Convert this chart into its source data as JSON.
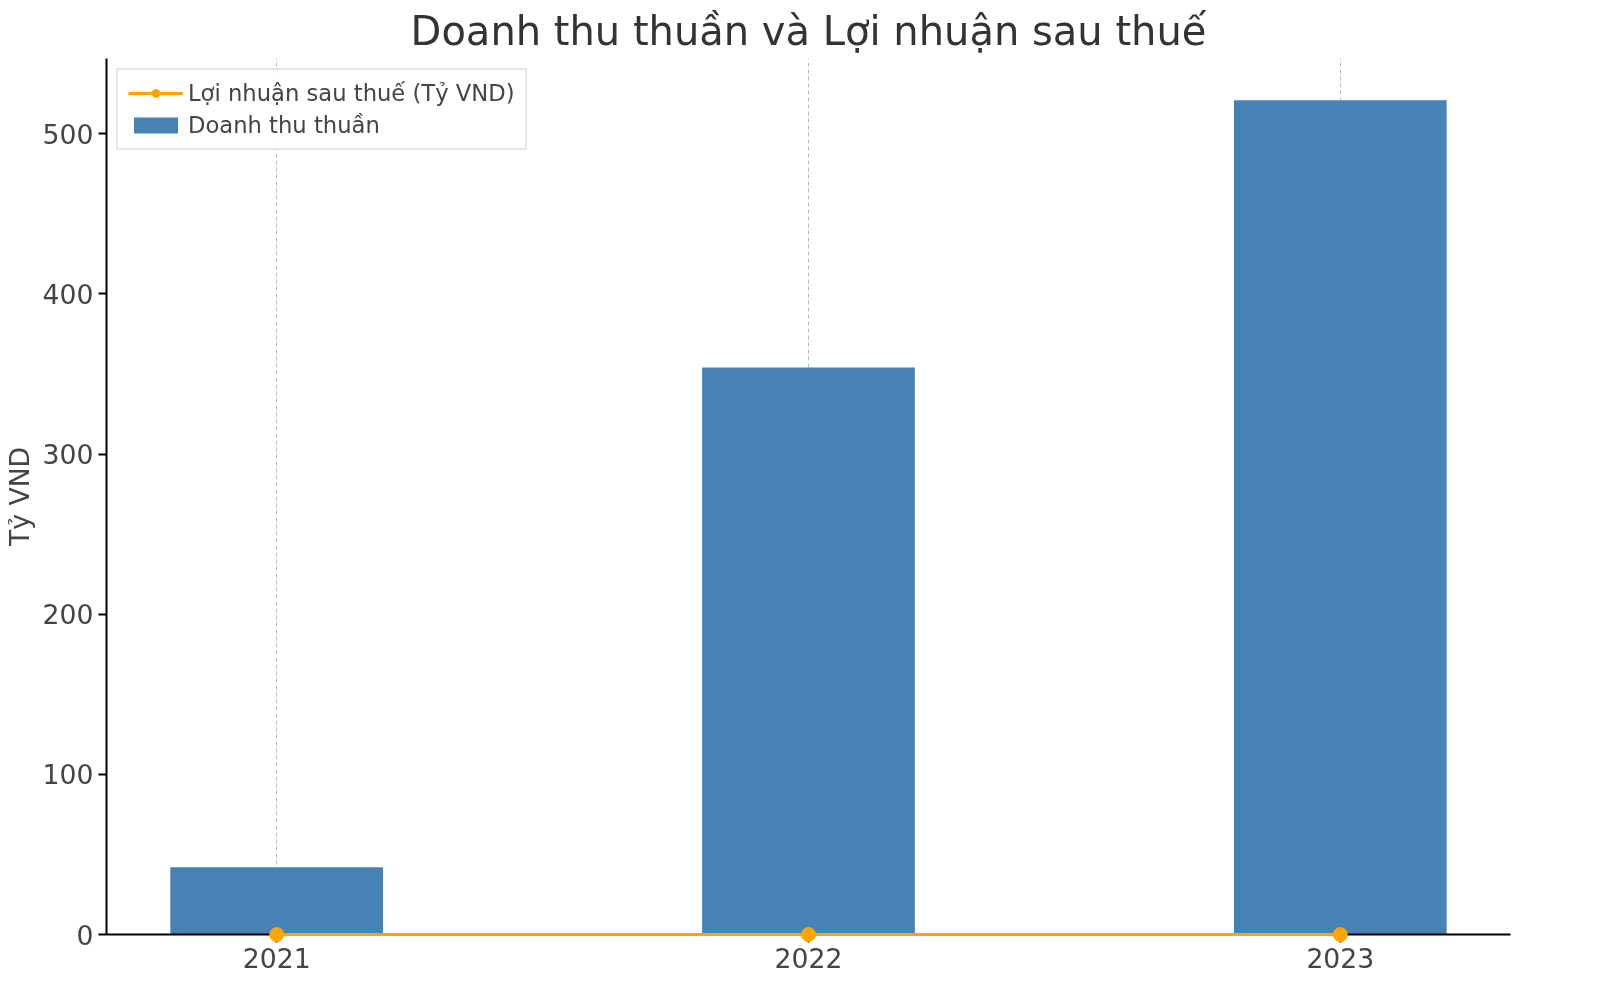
{
  "chart_data": {
    "type": "bar",
    "title": "Doanh thu thuần và Lợi nhuận sau thuế",
    "ylabel": "Tỷ VND",
    "categories": [
      "2021",
      "2022",
      "2023"
    ],
    "series": [
      {
        "name": "Lợi nhuận sau thuế (Tỷ VND)",
        "type": "line",
        "color": "#ffa500",
        "values": [
          0,
          0,
          0
        ]
      },
      {
        "name": "Doanh thu thuần",
        "color": "#4682b4",
        "values": [
          42,
          354,
          521
        ]
      }
    ],
    "ylim": [
      0,
      547
    ],
    "yticks": [
      0,
      100,
      200,
      300,
      400,
      500
    ],
    "grid": "x",
    "legend": "top left",
    "marker": "circle"
  }
}
